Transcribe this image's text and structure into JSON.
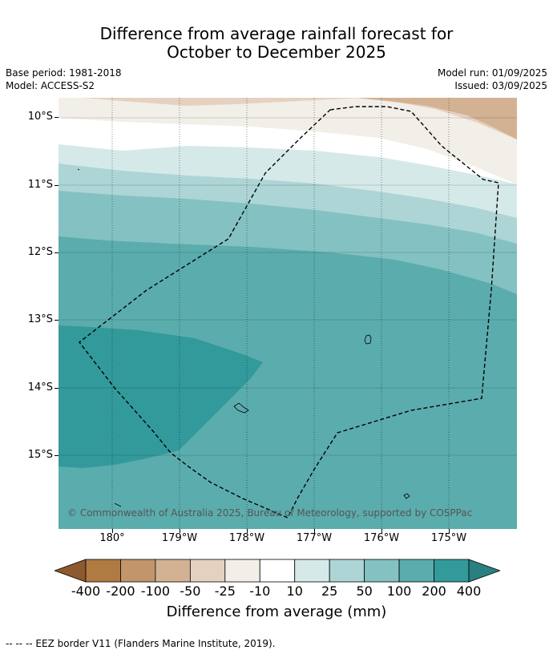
{
  "title_line1": "Difference from average rainfall forecast for",
  "title_line2": "October to December 2025",
  "meta": {
    "base_period": "Base period: 1981-2018",
    "model": "Model: ACCESS-S2",
    "model_run": "Model run: 01/09/2025",
    "issued": "Issued: 03/09/2025"
  },
  "map": {
    "lat_labels": [
      "10°S",
      "11°S",
      "12°S",
      "13°S",
      "14°S",
      "15°S"
    ],
    "lon_labels": [
      "180°",
      "179°W",
      "178°W",
      "177°W",
      "176°W",
      "175°W"
    ],
    "copyright": "© Commonwealth of Australia 2025, Bureau of Meteorology, supported by COSPPac",
    "land_color": "#ffffff",
    "eez_color": "#000000"
  },
  "legend": {
    "labels": [
      "-400",
      "-200",
      "-100",
      "-50",
      "-25",
      "-10",
      "10",
      "25",
      "50",
      "100",
      "200",
      "400"
    ],
    "colors": [
      "#8c5a2e",
      "#b07a43",
      "#c2956b",
      "#d3b293",
      "#e4d1c0",
      "#f2eee8",
      "#ffffff",
      "#d6e9e9",
      "#add5d6",
      "#84c1c2",
      "#5bacad",
      "#339a9b",
      "#2a7f80"
    ],
    "title": "Difference from average (mm)"
  },
  "footnote": "--  --  -- EEZ border V11 (Flanders Marine Institute, 2019)."
}
